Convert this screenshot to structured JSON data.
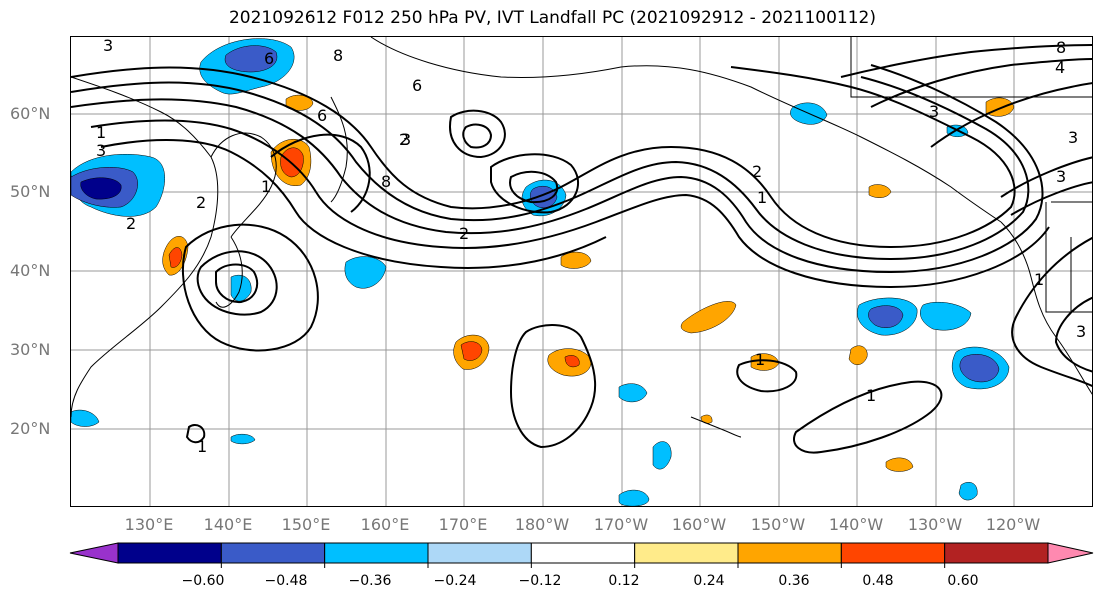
{
  "title": "2021092612 F012 250 hPa PV, IVT Landfall PC (2021092912 - 2021100112)",
  "map": {
    "lat_labels": [
      "60°N",
      "50°N",
      "40°N",
      "30°N",
      "20°N"
    ],
    "lon_labels": [
      "130°E",
      "140°E",
      "150°E",
      "160°E",
      "170°E",
      "180°W",
      "170°W",
      "160°W",
      "150°W",
      "140°W",
      "130°W",
      "120°W"
    ],
    "contour_labels": [
      "3",
      "6",
      "8",
      "6",
      "1",
      "3",
      "6",
      "3",
      "2",
      "8",
      "2",
      "1",
      "2",
      "1",
      "1",
      "1",
      "3",
      "4",
      "8",
      "3",
      "3",
      "3",
      "1",
      "1",
      "2",
      "2"
    ],
    "colors": {
      "contour": "#000000",
      "grid": "#999999",
      "coast": "#000000"
    }
  },
  "colorbar": {
    "colors": [
      "#9932cc",
      "#00008b",
      "#3a5bc8",
      "#00bfff",
      "#add8f7",
      "#ffffff",
      "#ffeb8a",
      "#ffa500",
      "#ff4500",
      "#b22222",
      "#ff89b0"
    ],
    "tick_labels": [
      "−0.60",
      "−0.48",
      "−0.36",
      "−0.24",
      "−0.12",
      "0.12",
      "0.24",
      "0.36",
      "0.48",
      "0.60"
    ]
  }
}
